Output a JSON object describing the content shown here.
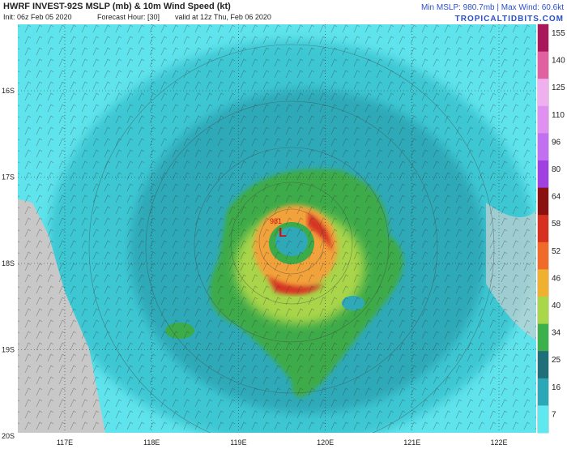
{
  "header": {
    "title": "HWRF INVEST-92S MSLP (mb) & 10m Wind Speed (kt)",
    "init": "Init: 06z Feb 05 2020",
    "forecast": "Forecast Hour: [30]",
    "valid": "valid at 12z Thu, Feb 06 2020",
    "stats": "Min MSLP: 980.7mb | Max Wind: 60.6kt",
    "credit": "TROPICALTIDBITS.COM"
  },
  "map": {
    "lat_labels": [
      "16S",
      "17S",
      "18S",
      "19S",
      "20S"
    ],
    "lon_labels": [
      "117E",
      "118E",
      "119E",
      "120E",
      "121E",
      "122E"
    ],
    "low_marker": "L",
    "low_pressure": "981"
  },
  "colorbar": {
    "ticks": [
      155,
      140,
      125,
      110,
      96,
      80,
      64,
      58,
      52,
      46,
      40,
      34,
      25,
      16,
      7
    ]
  }
}
